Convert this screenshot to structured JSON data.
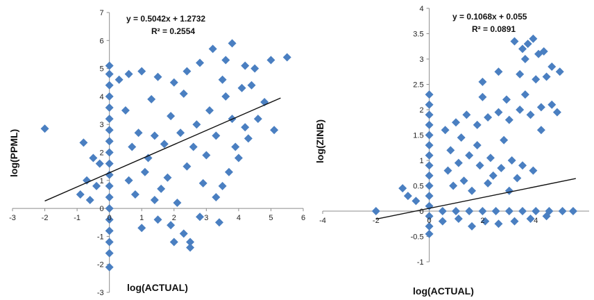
{
  "colors": {
    "marker": "#4a7fc1",
    "trendline": "#111111",
    "axis": "#8c8c8c"
  },
  "chart_data": [
    {
      "type": "scatter",
      "xlabel": "log(ACTUAL)",
      "ylabel": "log(PPML)",
      "equation": "y = 0.5042x + 1.2732",
      "r_squared": "R² = 0.2554",
      "trendline": {
        "slope": 0.5042,
        "intercept": 1.2732,
        "x_range": [
          -2,
          5.3
        ]
      },
      "xlim": [
        -3,
        6
      ],
      "ylim": [
        -3,
        7
      ],
      "x_ticks": [
        -3,
        -2,
        -1,
        0,
        1,
        2,
        3,
        4,
        5,
        6
      ],
      "x_tick_labels": [
        "-3",
        "-2",
        "-1",
        "0",
        "1",
        "2",
        "3",
        "4",
        "5",
        "6"
      ],
      "y_ticks": [
        -3,
        -2,
        -1,
        0,
        1,
        2,
        3,
        4,
        5,
        6,
        7
      ],
      "y_tick_labels": [
        "-3",
        "-2",
        "-1",
        "0",
        "1",
        "2",
        "3",
        "4",
        "5",
        "6",
        "7"
      ],
      "points": [
        [
          -2.0,
          2.85
        ],
        [
          -0.8,
          2.35
        ],
        [
          -0.5,
          1.8
        ],
        [
          -0.3,
          1.6
        ],
        [
          -0.7,
          1.0
        ],
        [
          -0.9,
          0.5
        ],
        [
          -0.6,
          0.3
        ],
        [
          -0.4,
          0.8
        ],
        [
          0,
          5.1
        ],
        [
          0,
          4.8
        ],
        [
          0,
          4.4
        ],
        [
          0,
          4.0
        ],
        [
          0,
          3.6
        ],
        [
          0,
          3.2
        ],
        [
          0,
          2.8
        ],
        [
          0,
          2.4
        ],
        [
          0,
          2.0
        ],
        [
          0,
          1.6
        ],
        [
          0,
          1.2
        ],
        [
          0,
          0.8
        ],
        [
          0,
          0.4
        ],
        [
          0,
          0.0
        ],
        [
          0,
          -0.4
        ],
        [
          0,
          -0.8
        ],
        [
          0,
          -1.2
        ],
        [
          0,
          -1.6
        ],
        [
          0,
          -2.1
        ],
        [
          0.3,
          4.6
        ],
        [
          0.6,
          4.8
        ],
        [
          1.0,
          4.9
        ],
        [
          1.5,
          4.7
        ],
        [
          2.0,
          4.5
        ],
        [
          2.4,
          4.9
        ],
        [
          2.8,
          5.2
        ],
        [
          3.2,
          5.7
        ],
        [
          3.6,
          5.3
        ],
        [
          3.8,
          5.9
        ],
        [
          4.2,
          5.1
        ],
        [
          4.5,
          5.0
        ],
        [
          5.0,
          5.3
        ],
        [
          5.5,
          5.4
        ],
        [
          4.8,
          3.8
        ],
        [
          5.1,
          2.8
        ],
        [
          4.6,
          3.2
        ],
        [
          4.2,
          2.9
        ],
        [
          3.9,
          2.2
        ],
        [
          4.3,
          2.5
        ],
        [
          4.0,
          1.8
        ],
        [
          3.7,
          1.3
        ],
        [
          3.5,
          0.8
        ],
        [
          3.3,
          0.4
        ],
        [
          3.4,
          -0.5
        ],
        [
          2.8,
          -0.3
        ],
        [
          2.5,
          -1.2
        ],
        [
          2.3,
          -0.9
        ],
        [
          2.0,
          -1.2
        ],
        [
          1.9,
          -0.6
        ],
        [
          1.5,
          -0.4
        ],
        [
          1.0,
          -0.7
        ],
        [
          2.5,
          -1.4
        ],
        [
          1.4,
          0.3
        ],
        [
          0.8,
          0.5
        ],
        [
          0.6,
          1.0
        ],
        [
          1.2,
          1.8
        ],
        [
          1.7,
          2.3
        ],
        [
          2.2,
          2.7
        ],
        [
          2.7,
          3.0
        ],
        [
          3.1,
          3.5
        ],
        [
          3.6,
          4.0
        ],
        [
          4.1,
          4.3
        ],
        [
          0.5,
          3.5
        ],
        [
          0.9,
          2.7
        ],
        [
          1.3,
          3.9
        ],
        [
          1.8,
          1.1
        ],
        [
          2.4,
          1.5
        ],
        [
          3.0,
          1.9
        ],
        [
          2.6,
          2.2
        ],
        [
          3.3,
          2.6
        ],
        [
          1.1,
          1.3
        ],
        [
          1.6,
          0.7
        ],
        [
          2.1,
          0.2
        ],
        [
          2.9,
          0.9
        ],
        [
          3.8,
          3.2
        ],
        [
          4.4,
          4.4
        ],
        [
          1.9,
          3.3
        ],
        [
          2.3,
          4.1
        ],
        [
          0.7,
          2.2
        ],
        [
          1.4,
          2.6
        ],
        [
          3.5,
          4.6
        ]
      ]
    },
    {
      "type": "scatter",
      "xlabel": "log(ACTUAL)",
      "ylabel": "log(ZINB)",
      "equation": "y = 0.1068x + 0.055",
      "r_squared": "R² = 0.0891",
      "trendline": {
        "slope": 0.1068,
        "intercept": 0.055,
        "x_range": [
          -2,
          5.5
        ]
      },
      "xlim": [
        -4,
        6
      ],
      "ylim": [
        -1,
        4
      ],
      "x_ticks": [
        -4,
        -2,
        0,
        2,
        4
      ],
      "x_tick_labels": [
        "-4",
        "-2",
        "0",
        "2",
        "4"
      ],
      "y_ticks": [
        -1,
        -0.5,
        0,
        0.5,
        1,
        1.5,
        2,
        2.5,
        3,
        3.5,
        4
      ],
      "y_tick_labels": [
        "-1",
        "-0.5",
        "0",
        "0.5",
        "1",
        "1.5",
        "2",
        "2.5",
        "3",
        "3.5",
        "4"
      ],
      "points": [
        [
          -2.0,
          0.0
        ],
        [
          -1.0,
          0.45
        ],
        [
          -0.8,
          0.3
        ],
        [
          -0.5,
          0.2
        ],
        [
          0,
          2.3
        ],
        [
          0,
          2.1
        ],
        [
          0,
          1.9
        ],
        [
          0,
          1.7
        ],
        [
          0,
          1.5
        ],
        [
          0,
          1.3
        ],
        [
          0,
          1.1
        ],
        [
          0,
          0.9
        ],
        [
          0,
          0.7
        ],
        [
          0,
          0.5
        ],
        [
          0,
          0.3
        ],
        [
          0,
          0.1
        ],
        [
          0,
          -0.1
        ],
        [
          0,
          -0.3
        ],
        [
          0,
          -0.45
        ],
        [
          0.5,
          0
        ],
        [
          1.0,
          0
        ],
        [
          1.5,
          0
        ],
        [
          2.0,
          0
        ],
        [
          2.5,
          0
        ],
        [
          3.0,
          0
        ],
        [
          3.5,
          0
        ],
        [
          4.0,
          0
        ],
        [
          4.5,
          0
        ],
        [
          5.0,
          0
        ],
        [
          5.4,
          0
        ],
        [
          0.6,
          1.6
        ],
        [
          1.0,
          1.75
        ],
        [
          1.4,
          1.9
        ],
        [
          1.8,
          1.7
        ],
        [
          2.2,
          1.85
        ],
        [
          2.6,
          1.95
        ],
        [
          3.0,
          1.8
        ],
        [
          3.4,
          2.0
        ],
        [
          3.8,
          1.9
        ],
        [
          4.2,
          2.05
        ],
        [
          4.6,
          2.1
        ],
        [
          4.8,
          1.95
        ],
        [
          2.0,
          2.25
        ],
        [
          2.9,
          2.2
        ],
        [
          3.6,
          2.3
        ],
        [
          1.2,
          1.45
        ],
        [
          0.7,
          0.8
        ],
        [
          1.1,
          0.95
        ],
        [
          1.5,
          1.1
        ],
        [
          1.9,
          0.9
        ],
        [
          2.3,
          1.05
        ],
        [
          2.7,
          0.85
        ],
        [
          3.1,
          1.0
        ],
        [
          3.5,
          0.9
        ],
        [
          3.9,
          0.8
        ],
        [
          1.3,
          0.6
        ],
        [
          0.9,
          0.5
        ],
        [
          1.6,
          0.4
        ],
        [
          2.4,
          0.7
        ],
        [
          3.3,
          0.65
        ],
        [
          3.2,
          3.35
        ],
        [
          3.5,
          3.2
        ],
        [
          3.7,
          3.3
        ],
        [
          3.9,
          3.4
        ],
        [
          4.1,
          3.1
        ],
        [
          4.3,
          3.15
        ],
        [
          3.6,
          3.0
        ],
        [
          2.6,
          2.75
        ],
        [
          4.0,
          2.6
        ],
        [
          4.4,
          2.65
        ],
        [
          4.9,
          2.75
        ],
        [
          4.6,
          2.85
        ],
        [
          2.0,
          2.55
        ],
        [
          3.4,
          2.7
        ],
        [
          0.5,
          -0.2
        ],
        [
          1.1,
          -0.15
        ],
        [
          1.6,
          -0.3
        ],
        [
          2.1,
          -0.2
        ],
        [
          2.6,
          -0.25
        ],
        [
          3.2,
          -0.2
        ],
        [
          3.8,
          -0.15
        ],
        [
          4.4,
          -0.1
        ],
        [
          2.2,
          0.55
        ],
        [
          3.0,
          0.4
        ],
        [
          1.8,
          1.3
        ],
        [
          2.8,
          1.4
        ],
        [
          4.2,
          1.6
        ],
        [
          0.8,
          1.2
        ]
      ]
    }
  ]
}
